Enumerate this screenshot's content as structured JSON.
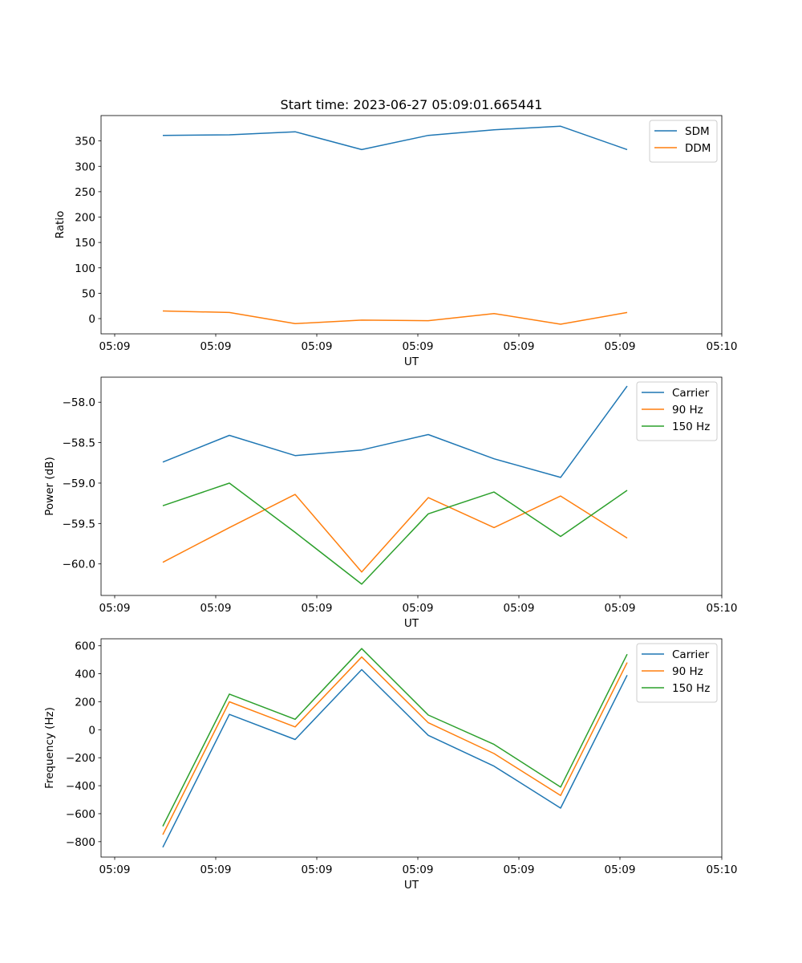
{
  "figure_title": "Start time: 2023-06-27 05:09:01.665441",
  "colors": {
    "c0": "#1f77b4",
    "c1": "#ff7f0e",
    "c2": "#2ca02c"
  },
  "chart_data": [
    {
      "type": "line",
      "title": "Start time: 2023-06-27 05:09:01.665441",
      "xlabel": "UT",
      "ylabel": "Ratio",
      "x_tick_labels": [
        "05:09",
        "05:09",
        "05:09",
        "05:09",
        "05:09",
        "05:09",
        "05:10"
      ],
      "y_ticks": [
        0,
        50,
        100,
        150,
        200,
        250,
        300,
        350
      ],
      "y_tick_labels": [
        "0",
        "50",
        "100",
        "150",
        "200",
        "250",
        "300",
        "350"
      ],
      "ylim": [
        -30,
        400
      ],
      "legend": "top-right",
      "series": [
        {
          "name": "SDM",
          "color": "#1f77b4",
          "values": [
            361,
            362,
            368,
            333,
            361,
            372,
            379,
            333
          ]
        },
        {
          "name": "DDM",
          "color": "#ff7f0e",
          "values": [
            15,
            12,
            -10,
            -3,
            -4,
            10,
            -11,
            12
          ]
        }
      ]
    },
    {
      "type": "line",
      "xlabel": "UT",
      "ylabel": "Power (dB)",
      "x_tick_labels": [
        "05:09",
        "05:09",
        "05:09",
        "05:09",
        "05:09",
        "05:09",
        "05:10"
      ],
      "y_ticks": [
        -60.0,
        -59.5,
        -59.0,
        -58.5,
        -58.0
      ],
      "y_tick_labels": [
        "−60.0",
        "−59.5",
        "−59.0",
        "−58.5",
        "−58.0"
      ],
      "ylim": [
        -60.39,
        -57.69
      ],
      "legend": "top-right",
      "series": [
        {
          "name": "Carrier",
          "color": "#1f77b4",
          "values": [
            -58.74,
            -58.41,
            -58.66,
            -58.59,
            -58.4,
            -58.7,
            -58.93,
            -57.8
          ]
        },
        {
          "name": "90 Hz",
          "color": "#ff7f0e",
          "values": [
            -59.98,
            -59.55,
            -59.14,
            -60.1,
            -59.18,
            -59.55,
            -59.16,
            -59.68
          ]
        },
        {
          "name": "150 Hz",
          "color": "#2ca02c",
          "values": [
            -59.28,
            -59.0,
            -59.61,
            -60.25,
            -59.38,
            -59.11,
            -59.66,
            -59.09
          ]
        }
      ]
    },
    {
      "type": "line",
      "xlabel": "UT",
      "ylabel": "Frequency (Hz)",
      "x_tick_labels": [
        "05:09",
        "05:09",
        "05:09",
        "05:09",
        "05:09",
        "05:09",
        "05:10"
      ],
      "y_ticks": [
        -800,
        -600,
        -400,
        -200,
        0,
        200,
        400,
        600
      ],
      "y_tick_labels": [
        "−800",
        "−600",
        "−400",
        "−200",
        "0",
        "200",
        "400",
        "600"
      ],
      "ylim": [
        -910,
        650
      ],
      "legend": "top-right",
      "series": [
        {
          "name": "Carrier",
          "color": "#1f77b4",
          "values": [
            -840,
            110,
            -70,
            430,
            -40,
            -260,
            -560,
            390
          ]
        },
        {
          "name": "90 Hz",
          "color": "#ff7f0e",
          "values": [
            -750,
            200,
            20,
            520,
            50,
            -170,
            -470,
            480
          ]
        },
        {
          "name": "150 Hz",
          "color": "#2ca02c",
          "values": [
            -690,
            255,
            75,
            580,
            105,
            -105,
            -410,
            540
          ]
        }
      ]
    }
  ]
}
